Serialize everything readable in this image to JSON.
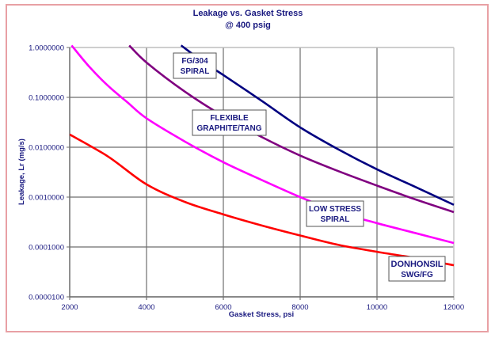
{
  "chart_data": {
    "type": "line",
    "title": "Leakage vs. Gasket Stress",
    "subtitle": "@ 400 psig",
    "xlabel": "Gasket Stress, psi",
    "ylabel": "Leakage, Lr (mg/s)",
    "xlim": [
      2000,
      12000
    ],
    "ylim": [
      1e-05,
      1.0
    ],
    "yscale": "log",
    "grid": true,
    "legend": "inline-labels",
    "x_ticks": [
      "2000",
      "4000",
      "6000",
      "8000",
      "10000",
      "12000"
    ],
    "x_tick_values": [
      2000,
      4000,
      6000,
      8000,
      10000,
      12000
    ],
    "y_ticks": [
      "1.0000000",
      "0.1000000",
      "0.0100000",
      "0.0010000",
      "0.0001000",
      "0.0000100"
    ],
    "y_tick_values": [
      1.0,
      0.1,
      0.01,
      0.001,
      0.0001,
      1e-05
    ],
    "series": [
      {
        "name": "FG/304 SPIRAL",
        "label_lines": [
          "FG/304",
          "SPIRAL"
        ],
        "color": "#000080",
        "x": [
          4900,
          5500,
          6000,
          7000,
          8000,
          9000,
          10000,
          11000,
          12000
        ],
        "y": [
          1.1,
          0.5,
          0.28,
          0.085,
          0.025,
          0.009,
          0.0036,
          0.0016,
          0.0007
        ]
      },
      {
        "name": "FLEXIBLE GRAPHITE/TANG",
        "label_lines": [
          "FLEXIBLE",
          "GRAPHITE/TANG"
        ],
        "color": "#800080",
        "x": [
          3550,
          4000,
          5000,
          6000,
          7000,
          8000,
          9000,
          10000,
          11000,
          12000
        ],
        "y": [
          1.1,
          0.5,
          0.13,
          0.042,
          0.016,
          0.0068,
          0.0033,
          0.0017,
          0.0009,
          0.0005
        ]
      },
      {
        "name": "LOW STRESS SPIRAL",
        "label_lines": [
          "LOW STRESS",
          "SPIRAL"
        ],
        "color": "#FF00FF",
        "x": [
          2050,
          2500,
          3000,
          3500,
          4000,
          5000,
          6000,
          7000,
          8000,
          9000,
          10000,
          11000,
          12000
        ],
        "y": [
          1.1,
          0.42,
          0.17,
          0.08,
          0.038,
          0.013,
          0.005,
          0.0022,
          0.001,
          0.0005,
          0.0003,
          0.00019,
          0.00012
        ]
      },
      {
        "name": "DONHONSIL SWG/FG",
        "label_lines": [
          "DONHONSIL",
          "SWG/FG"
        ],
        "color": "#FF0000",
        "x": [
          2000,
          3000,
          4000,
          5000,
          6000,
          7000,
          8000,
          9000,
          10000,
          11000,
          12000
        ],
        "y": [
          0.018,
          0.0065,
          0.0018,
          0.0008,
          0.00045,
          0.00027,
          0.00017,
          0.00011,
          8e-05,
          6e-05,
          4.3e-05
        ]
      }
    ]
  }
}
